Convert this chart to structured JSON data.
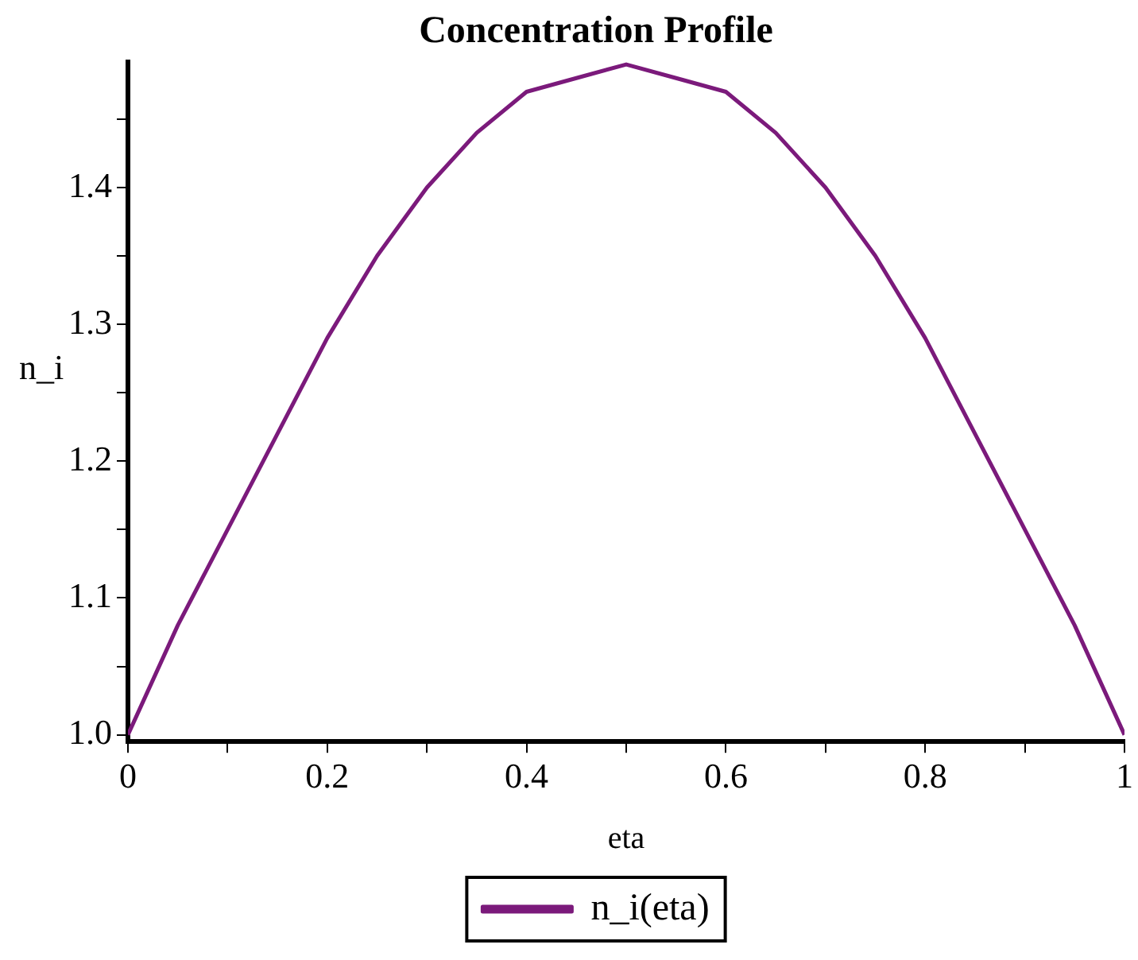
{
  "chart_data": {
    "type": "line",
    "title": "Concentration Profile",
    "xlabel": "eta",
    "ylabel": "n_i",
    "x": [
      0,
      0.05,
      0.1,
      0.15,
      0.2,
      0.25,
      0.3,
      0.35,
      0.4,
      0.45,
      0.5,
      0.55,
      0.6,
      0.65,
      0.7,
      0.75,
      0.8,
      0.85,
      0.9,
      0.95,
      1
    ],
    "series": [
      {
        "name": "n_i(eta)",
        "color": "#7b1a7b",
        "values": [
          1.0,
          1.08,
          1.15,
          1.22,
          1.29,
          1.35,
          1.4,
          1.44,
          1.47,
          1.48,
          1.49,
          1.48,
          1.47,
          1.44,
          1.4,
          1.35,
          1.29,
          1.22,
          1.15,
          1.08,
          1.0
        ]
      }
    ],
    "xlim": [
      0,
      1
    ],
    "ylim": [
      0.995,
      1.492
    ],
    "xticks": [
      0,
      {
        "value": 0.1,
        "label": null
      },
      0.2,
      {
        "value": 0.3,
        "label": null
      },
      0.4,
      {
        "value": 0.5,
        "label": null
      },
      0.6,
      {
        "value": 0.7,
        "label": null
      },
      0.8,
      {
        "value": 0.9,
        "label": null
      },
      1
    ],
    "yticks": [
      {
        "value": 1,
        "label": "1.0"
      },
      {
        "value": 1.05,
        "label": null
      },
      1.1,
      {
        "value": 1.15,
        "label": null
      },
      1.2,
      {
        "value": 1.25,
        "label": null
      },
      1.3,
      {
        "value": 1.35,
        "label": null
      },
      1.4,
      {
        "value": 1.45,
        "label": null
      }
    ],
    "legend": "bottom",
    "marker": "none",
    "line_style": "solid"
  }
}
